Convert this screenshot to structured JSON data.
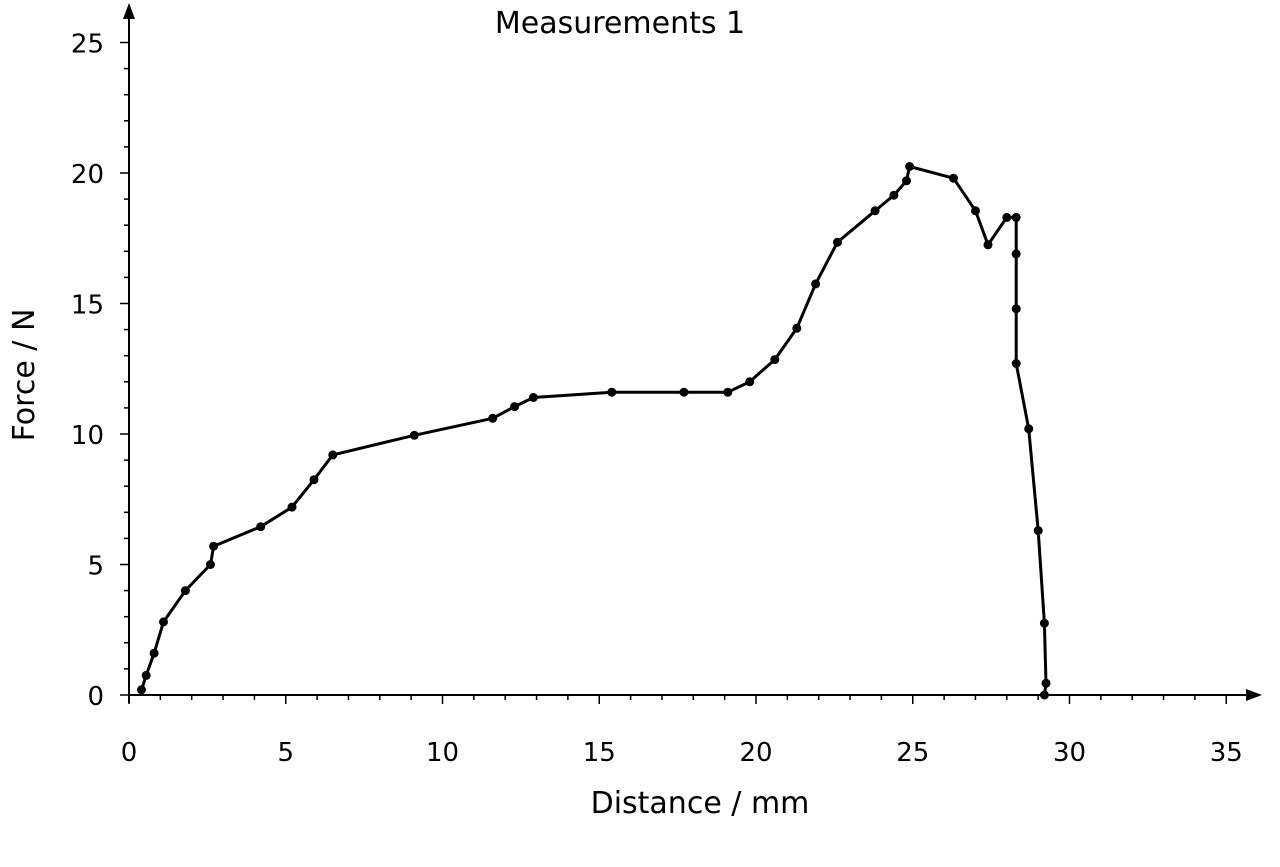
{
  "chart_data": {
    "type": "line",
    "title": "Measurements 1",
    "xlabel": "Distance / mm",
    "ylabel": "Force / N",
    "xlim": [
      0,
      36
    ],
    "ylim": [
      0,
      26
    ],
    "xticks": [
      0,
      5,
      10,
      15,
      20,
      25,
      30,
      35
    ],
    "yticks": [
      0,
      5,
      10,
      15,
      20,
      25
    ],
    "grid": false,
    "legend": "none",
    "markers": true,
    "line_color": "#000000",
    "series": [
      {
        "points": [
          [
            0.4,
            0.2
          ],
          [
            0.55,
            0.75
          ],
          [
            0.8,
            1.6
          ],
          [
            1.1,
            2.8
          ],
          [
            1.8,
            4.0
          ],
          [
            2.6,
            5.0
          ],
          [
            2.7,
            5.7
          ],
          [
            4.2,
            6.45
          ],
          [
            5.2,
            7.2
          ],
          [
            5.9,
            8.25
          ],
          [
            6.5,
            9.2
          ],
          [
            9.1,
            9.95
          ],
          [
            11.6,
            10.6
          ],
          [
            12.3,
            11.05
          ],
          [
            12.9,
            11.4
          ],
          [
            15.4,
            11.6
          ],
          [
            17.7,
            11.6
          ],
          [
            19.1,
            11.6
          ],
          [
            19.8,
            12.0
          ],
          [
            20.6,
            12.85
          ],
          [
            21.3,
            14.05
          ],
          [
            21.9,
            15.75
          ],
          [
            22.6,
            17.35
          ],
          [
            23.8,
            18.55
          ],
          [
            24.4,
            19.15
          ],
          [
            24.8,
            19.7
          ],
          [
            24.9,
            20.25
          ],
          [
            26.3,
            19.8
          ],
          [
            27.0,
            18.55
          ],
          [
            27.4,
            17.25
          ],
          [
            28.0,
            18.3
          ],
          [
            28.3,
            18.3
          ],
          [
            28.3,
            16.9
          ],
          [
            28.3,
            14.8
          ],
          [
            28.3,
            12.7
          ],
          [
            28.7,
            10.2
          ],
          [
            29.0,
            6.3
          ],
          [
            29.2,
            2.75
          ],
          [
            29.25,
            0.45
          ],
          [
            29.2,
            0.0
          ]
        ]
      }
    ]
  }
}
